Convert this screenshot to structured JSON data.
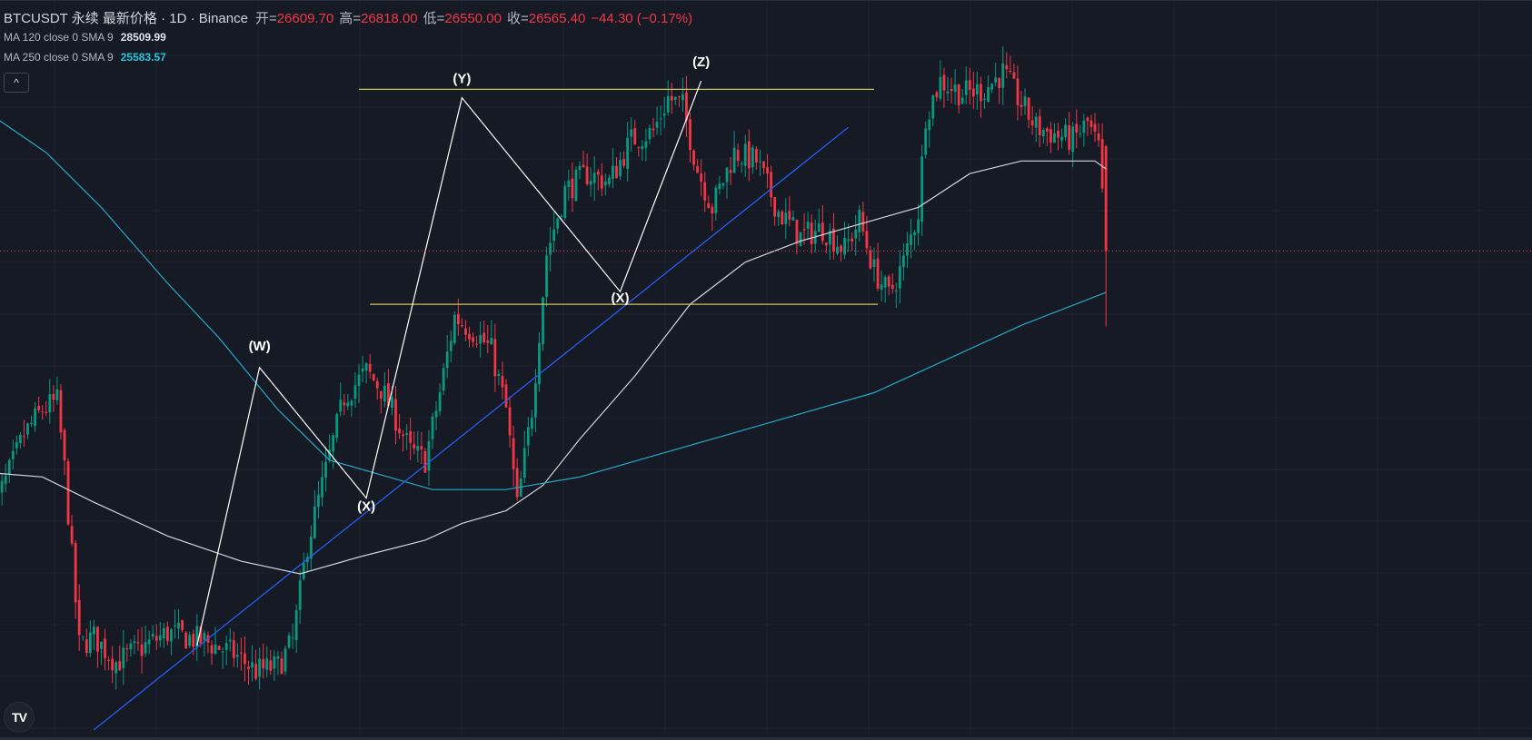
{
  "legend": {
    "symbol": "BTCUSDT 永续 最新价格 · 1D · Binance",
    "open_label": "开=",
    "open": "26609.70",
    "high_label": "高=",
    "high": "26818.00",
    "low_label": "低=",
    "low": "26550.00",
    "close_label": "收=",
    "close": "26565.40",
    "change": "−44.30 (−0.17%)",
    "ma1_label": "MA 120 close 0 SMA 9",
    "ma1_value": "28509.99",
    "ma2_label": "MA 250 close 0 SMA 9",
    "ma2_value": "25583.57"
  },
  "colors": {
    "up": "#089981",
    "down": "#f23645",
    "ma120": "#d1d4dc",
    "ma250": "#26a8c6",
    "trendline": "#2962ff",
    "horizontal": "#c9c35a",
    "wave": "#ffffff",
    "ma1_value_color": "#e0e3eb",
    "ma2_value_color": "#26c6da"
  },
  "icons": {
    "collapse": "chevron-up-icon",
    "logo": "tradingview-logo-icon"
  },
  "collapse_glyph": "^",
  "logo_text": "TV",
  "chart_data": {
    "type": "candlestick",
    "title": "BTCUSDT 永续 最新价格 · 1D · Binance",
    "ylim": [
      15000,
      32500
    ],
    "candles_count": 300,
    "grid": true,
    "anchors": [
      {
        "i": 0,
        "p": 20300
      },
      {
        "i": 4,
        "p": 21100
      },
      {
        "i": 9,
        "p": 22200
      },
      {
        "i": 14,
        "p": 22800
      },
      {
        "i": 18,
        "p": 23000
      },
      {
        "i": 20,
        "p": 21400
      },
      {
        "i": 24,
        "p": 17200
      },
      {
        "i": 28,
        "p": 17400
      },
      {
        "i": 34,
        "p": 16800
      },
      {
        "i": 40,
        "p": 17100
      },
      {
        "i": 48,
        "p": 17500
      },
      {
        "i": 58,
        "p": 17300
      },
      {
        "i": 66,
        "p": 17000
      },
      {
        "i": 72,
        "p": 16600
      },
      {
        "i": 78,
        "p": 16700
      },
      {
        "i": 82,
        "p": 17300
      },
      {
        "i": 86,
        "p": 19600
      },
      {
        "i": 90,
        "p": 21000
      },
      {
        "i": 96,
        "p": 23100
      },
      {
        "i": 102,
        "p": 23700
      },
      {
        "i": 106,
        "p": 23300
      },
      {
        "i": 110,
        "p": 22600
      },
      {
        "i": 114,
        "p": 21800
      },
      {
        "i": 118,
        "p": 21600
      },
      {
        "i": 122,
        "p": 23200
      },
      {
        "i": 126,
        "p": 25000
      },
      {
        "i": 132,
        "p": 24600
      },
      {
        "i": 136,
        "p": 24200
      },
      {
        "i": 140,
        "p": 22800
      },
      {
        "i": 143,
        "p": 20500
      },
      {
        "i": 147,
        "p": 22800
      },
      {
        "i": 151,
        "p": 26500
      },
      {
        "i": 156,
        "p": 28000
      },
      {
        "i": 162,
        "p": 28400
      },
      {
        "i": 168,
        "p": 28200
      },
      {
        "i": 174,
        "p": 29200
      },
      {
        "i": 180,
        "p": 29400
      },
      {
        "i": 184,
        "p": 30200
      },
      {
        "i": 188,
        "p": 30000
      },
      {
        "i": 192,
        "p": 28500
      },
      {
        "i": 196,
        "p": 27600
      },
      {
        "i": 202,
        "p": 28900
      },
      {
        "i": 208,
        "p": 28700
      },
      {
        "i": 214,
        "p": 27500
      },
      {
        "i": 220,
        "p": 26900
      },
      {
        "i": 226,
        "p": 27100
      },
      {
        "i": 232,
        "p": 26600
      },
      {
        "i": 236,
        "p": 27300
      },
      {
        "i": 240,
        "p": 26100
      },
      {
        "i": 244,
        "p": 25500
      },
      {
        "i": 248,
        "p": 26300
      },
      {
        "i": 252,
        "p": 27500
      },
      {
        "i": 254,
        "p": 29800
      },
      {
        "i": 258,
        "p": 30600
      },
      {
        "i": 264,
        "p": 30300
      },
      {
        "i": 270,
        "p": 30400
      },
      {
        "i": 275,
        "p": 30800
      },
      {
        "i": 279,
        "p": 30200
      },
      {
        "i": 284,
        "p": 29500
      },
      {
        "i": 290,
        "p": 29300
      },
      {
        "i": 294,
        "p": 29200
      },
      {
        "i": 298,
        "p": 29600
      },
      {
        "i": 301,
        "p": 29000
      },
      {
        "i": 303,
        "p": 26565
      }
    ],
    "ma120": [
      {
        "i": 0,
        "p": 21300
      },
      {
        "i": 14,
        "p": 21200
      },
      {
        "i": 28,
        "p": 20600
      },
      {
        "i": 48,
        "p": 19800
      },
      {
        "i": 68,
        "p": 19200
      },
      {
        "i": 84,
        "p": 18900
      },
      {
        "i": 100,
        "p": 19300
      },
      {
        "i": 118,
        "p": 19700
      },
      {
        "i": 128,
        "p": 20100
      },
      {
        "i": 140,
        "p": 20400
      },
      {
        "i": 150,
        "p": 21000
      },
      {
        "i": 160,
        "p": 22100
      },
      {
        "i": 175,
        "p": 23600
      },
      {
        "i": 190,
        "p": 25300
      },
      {
        "i": 205,
        "p": 26300
      },
      {
        "i": 220,
        "p": 26800
      },
      {
        "i": 236,
        "p": 27200
      },
      {
        "i": 252,
        "p": 27600
      },
      {
        "i": 266,
        "p": 28400
      },
      {
        "i": 280,
        "p": 28700
      },
      {
        "i": 300,
        "p": 28700
      },
      {
        "i": 303,
        "p": 28510
      }
    ],
    "ma250": [
      {
        "i": 0,
        "p": 29800
      },
      {
        "i": 15,
        "p": 28900
      },
      {
        "i": 30,
        "p": 27600
      },
      {
        "i": 48,
        "p": 25800
      },
      {
        "i": 62,
        "p": 24500
      },
      {
        "i": 78,
        "p": 22800
      },
      {
        "i": 92,
        "p": 21600
      },
      {
        "i": 108,
        "p": 21200
      },
      {
        "i": 120,
        "p": 20900
      },
      {
        "i": 140,
        "p": 20900
      },
      {
        "i": 160,
        "p": 21200
      },
      {
        "i": 180,
        "p": 21700
      },
      {
        "i": 200,
        "p": 22200
      },
      {
        "i": 220,
        "p": 22700
      },
      {
        "i": 240,
        "p": 23200
      },
      {
        "i": 260,
        "p": 24000
      },
      {
        "i": 280,
        "p": 24800
      },
      {
        "i": 303,
        "p": 25580
      }
    ],
    "last_price": 26565.4,
    "drawings": {
      "trendline": [
        {
          "i": 28,
          "p": 15200
        },
        {
          "i": 233,
          "p": 29500
        }
      ],
      "resistance": [
        {
          "i": 100,
          "p": 30400
        },
        {
          "i": 240,
          "p": 30400
        }
      ],
      "support": [
        {
          "i": 103,
          "p": 25300
        },
        {
          "i": 241,
          "p": 25300
        }
      ],
      "wave_path": [
        {
          "i": 56,
          "p": 17200
        },
        {
          "i": 73,
          "p": 23800
        },
        {
          "i": 102,
          "p": 20700
        },
        {
          "i": 128,
          "p": 30200
        },
        {
          "i": 171,
          "p": 25600
        },
        {
          "i": 193,
          "p": 30600
        }
      ]
    },
    "wave_labels": [
      {
        "text": "(W)",
        "i": 73,
        "p": 24200
      },
      {
        "text": "(X)",
        "i": 102,
        "p": 20400
      },
      {
        "text": "(Y)",
        "i": 128,
        "p": 30550
      },
      {
        "text": "(X)",
        "i": 171,
        "p": 25350
      },
      {
        "text": "(Z)",
        "i": 193,
        "p": 30950
      }
    ]
  }
}
